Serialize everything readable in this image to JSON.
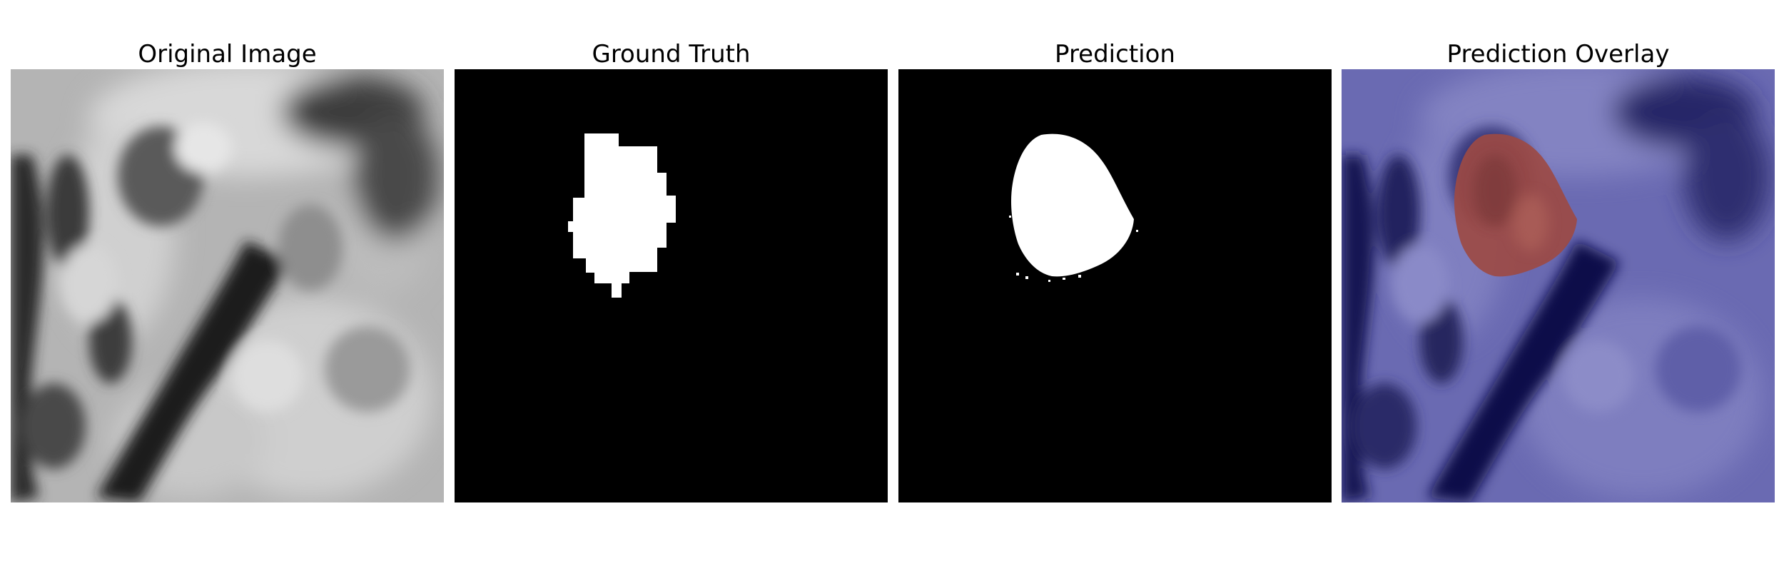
{
  "figure": {
    "panels": [
      {
        "title": "Original Image"
      },
      {
        "title": "Ground Truth"
      },
      {
        "title": "Prediction"
      },
      {
        "title": "Prediction Overlay"
      }
    ]
  },
  "colors": {
    "mask_background": "#000000",
    "mask_foreground": "#ffffff",
    "overlay_tint": "#5a5ab4",
    "overlay_region": "#a34a3a"
  }
}
